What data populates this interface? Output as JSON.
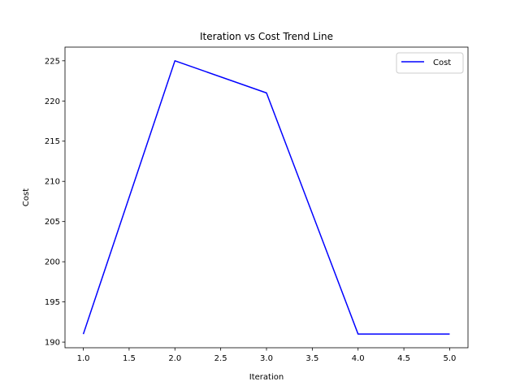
{
  "chart_data": {
    "type": "line",
    "title": "Iteration vs Cost Trend Line",
    "xlabel": "Iteration",
    "ylabel": "Cost",
    "x": [
      1.0,
      2.0,
      3.0,
      4.0,
      5.0
    ],
    "series": [
      {
        "name": "Cost",
        "values": [
          191,
          225,
          221,
          191,
          191
        ],
        "color": "#0000ff"
      }
    ],
    "xlim": [
      0.8,
      5.2
    ],
    "ylim": [
      189.3,
      226.7
    ],
    "xticks": [
      1.0,
      1.5,
      2.0,
      2.5,
      3.0,
      3.5,
      4.0,
      4.5,
      5.0
    ],
    "xtick_labels": [
      "1.0",
      "1.5",
      "2.0",
      "2.5",
      "3.0",
      "3.5",
      "4.0",
      "4.5",
      "5.0"
    ],
    "yticks": [
      190,
      195,
      200,
      205,
      210,
      215,
      220,
      225
    ],
    "ytick_labels": [
      "190",
      "195",
      "200",
      "205",
      "210",
      "215",
      "220",
      "225"
    ],
    "grid": false,
    "legend": {
      "position": "top-right",
      "entries": [
        "Cost"
      ]
    }
  }
}
